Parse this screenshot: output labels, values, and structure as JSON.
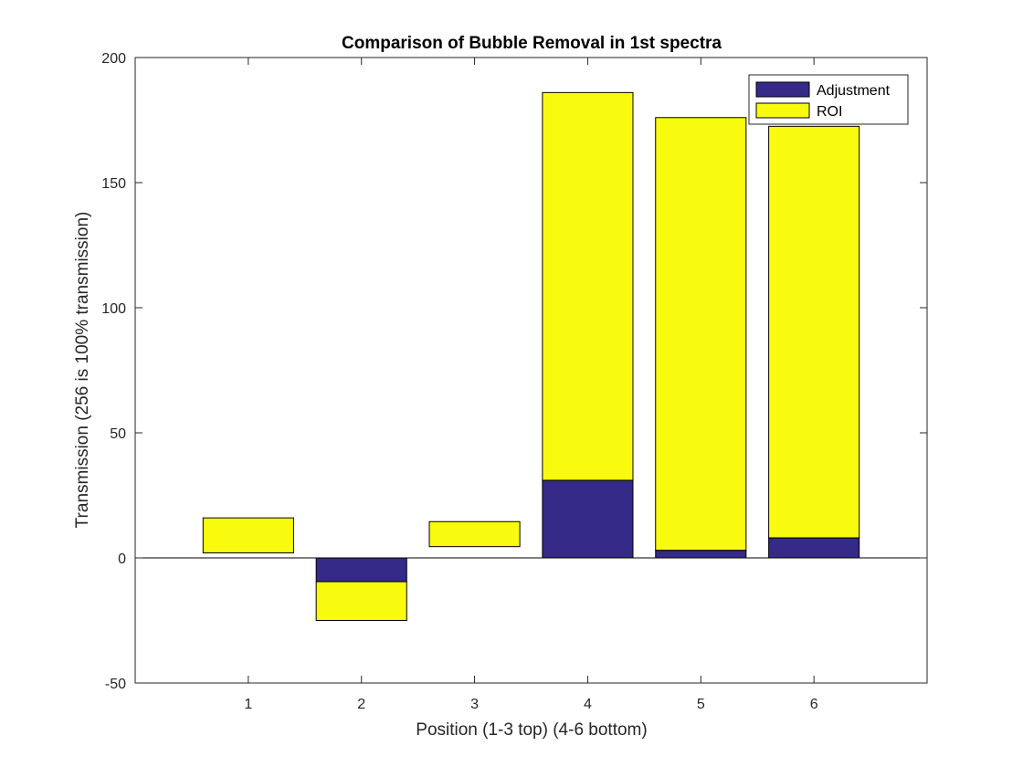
{
  "chart_data": {
    "type": "bar",
    "stacked": true,
    "title": "Comparison of Bubble Removal in 1st spectra",
    "xlabel": "Position (1-3 top) (4-6 bottom)",
    "ylabel": "Transmission (256 is 100% transmission)",
    "categories": [
      "1",
      "2",
      "3",
      "4",
      "5",
      "6"
    ],
    "ylim": [
      -50,
      200
    ],
    "yticks": [
      -50,
      0,
      50,
      100,
      150,
      200
    ],
    "grid": false,
    "legend_position": "top-right",
    "series": [
      {
        "name": "Adjustment",
        "color": "#352a87",
        "values": [
          0,
          -9.5,
          0,
          31,
          3,
          8
        ]
      },
      {
        "name": "ROI",
        "color": "#f9fb0e",
        "values": [
          -14,
          -15.5,
          -10,
          155,
          173,
          164.5
        ],
        "note_offset_values": [
          16,
          0,
          14.5,
          0,
          0,
          0
        ]
      }
    ]
  }
}
